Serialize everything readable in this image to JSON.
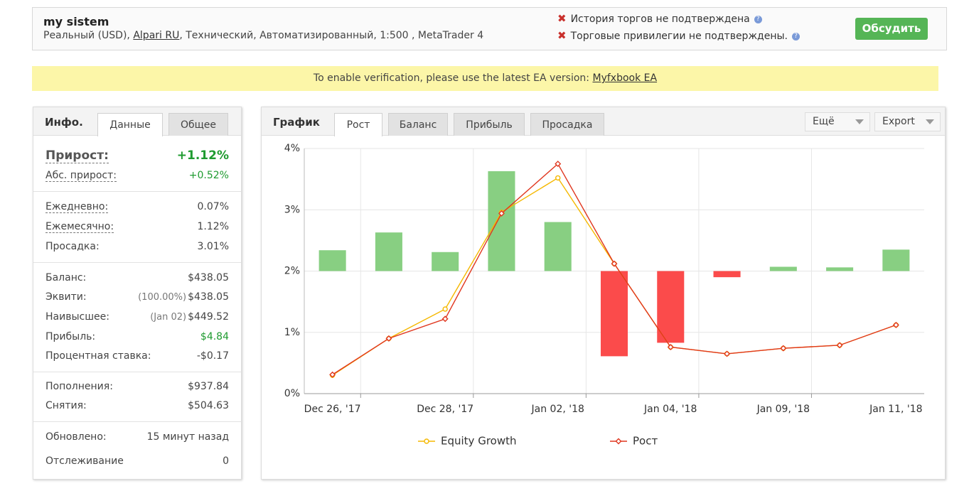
{
  "header": {
    "title": "my sistem",
    "subtitle_start": "Реальный (USD),",
    "broker": "Alpari RU",
    "subtitle_end": ", Технический, Автоматизированный, 1:500 , MetaTrader 4",
    "status": [
      "История торгов не подтверждена",
      "Торговые привилегии не подтверждены."
    ],
    "button": "Обсудить"
  },
  "banner": {
    "text": "To enable verification, please use the latest EA version:",
    "link": "Myfxbook EA"
  },
  "info": {
    "tabs": [
      "Инфо.",
      "Данные",
      "Общее"
    ],
    "groups": [
      [
        {
          "label": "Прирост:",
          "value": "+1.12%"
        },
        {
          "label": "Абс. прирост:",
          "value": "+0.52%"
        }
      ],
      [
        {
          "label": "Ежедневно:",
          "value": "0.07%"
        },
        {
          "label": "Ежемесячно:",
          "value": "1.12%"
        },
        {
          "label": "Просадка:",
          "value": "3.01%"
        }
      ],
      [
        {
          "label": "Баланс:",
          "value": "$438.05"
        },
        {
          "label": "Эквити:",
          "note": "(100.00%)",
          "value": "$438.05"
        },
        {
          "label": "Наивысшее:",
          "note": "(Jan 02)",
          "value": "$449.52"
        },
        {
          "label": "Прибыль:",
          "value": "$4.84"
        },
        {
          "label": "Процентная ставка:",
          "value": "-$0.17"
        }
      ],
      [
        {
          "label": "Пополнения:",
          "value": "$937.84"
        },
        {
          "label": "Снятия:",
          "value": "$504.63"
        }
      ],
      [
        {
          "label": "Обновлено:",
          "value": "15 минут назад"
        },
        {
          "label": "Отслеживание",
          "value": "0"
        }
      ]
    ]
  },
  "chart_panel": {
    "title": "График",
    "tabs": [
      "Рост",
      "Баланс",
      "Прибыль",
      "Просадка"
    ],
    "buttons": [
      "Ещё",
      "Export"
    ]
  },
  "chart_data": {
    "type": "line",
    "categories": [
      "Dec 26, '17",
      null,
      "Dec 28, '17",
      null,
      "Jan 02, '18",
      null,
      "Jan 04, '18",
      null,
      "Jan 09, '18",
      null,
      "Jan 11, '18"
    ],
    "bars": {
      "base": 2,
      "color": "#88cf82",
      "negative_color": "#fb4b4b",
      "values": [
        2.34,
        2.63,
        2.31,
        3.63,
        2.8,
        0.61,
        0.83,
        1.9,
        2.07,
        2.06,
        2.35
      ]
    },
    "series": [
      {
        "name": "Equity Growth",
        "color": "#f5b800",
        "values": [
          0.3,
          0.9,
          1.38,
          2.96,
          3.52,
          2.12,
          0.76,
          0.65,
          0.74,
          0.79,
          1.12
        ]
      },
      {
        "name": "Рост",
        "color": "#e0371f",
        "values": [
          0.31,
          0.9,
          1.22,
          2.94,
          3.75,
          2.12,
          0.76,
          0.65,
          0.74,
          0.79,
          1.12
        ]
      }
    ],
    "ylim": [
      0,
      4
    ],
    "yticks": [
      {
        "value": 0,
        "label": "0%"
      },
      {
        "value": 1,
        "label": "1%"
      },
      {
        "value": 2,
        "label": "2%"
      },
      {
        "value": 3,
        "label": "3%"
      },
      {
        "value": 4,
        "label": "4%"
      }
    ],
    "grid": true
  }
}
